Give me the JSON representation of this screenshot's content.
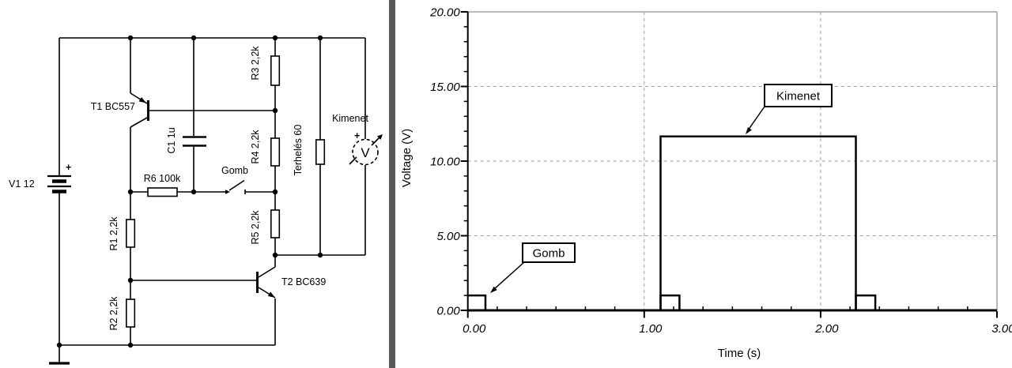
{
  "schematic": {
    "v1": {
      "label": "V1 12",
      "plus": "+"
    },
    "t1": {
      "label": "T1 BC557"
    },
    "t2": {
      "label": "T2 BC639"
    },
    "c1": {
      "label": "C1 1u"
    },
    "r1": {
      "label": "R1 2,2k"
    },
    "r2": {
      "label": "R2 2,2k"
    },
    "r3": {
      "label": "R3 2,2k"
    },
    "r4": {
      "label": "R4 2,2k"
    },
    "r5": {
      "label": "R5 2,2k"
    },
    "r6": {
      "label": "R6 100k"
    },
    "load": {
      "label": "Terhelés 60"
    },
    "switch": {
      "label": "Gomb"
    },
    "output_wire": {
      "label": "Kimenet"
    },
    "voltmeter": {
      "symbol": "V",
      "plus": "+"
    }
  },
  "chart": {
    "xlabel": "Time (s)",
    "ylabel": "Voltage (V)",
    "yticks": [
      "20.00",
      "15.00",
      "10.00",
      "5.00",
      "0.00"
    ],
    "xticks": [
      "0.00",
      "1.00",
      "2.00",
      "3.00"
    ],
    "annotations": [
      {
        "label": "Kimenet"
      },
      {
        "label": "Gomb"
      }
    ]
  },
  "chart_data": {
    "type": "line",
    "title": "",
    "xlabel": "Time (s)",
    "ylabel": "Voltage (V)",
    "xlim": [
      0,
      3
    ],
    "ylim": [
      0,
      20
    ],
    "x_major_ticks": [
      0,
      1,
      2,
      3
    ],
    "x_minor_step": 0.1666667,
    "y_major_ticks": [
      20,
      15,
      10,
      5,
      0
    ],
    "y_minor_step": 1,
    "grid": "dashed",
    "legend_position": "none",
    "series": [
      {
        "name": "Gomb",
        "points": [
          [
            0,
            1
          ],
          [
            0.1,
            1
          ],
          [
            0.1,
            0
          ],
          [
            1.093,
            0
          ],
          [
            1.093,
            1
          ],
          [
            1.2,
            1
          ],
          [
            1.2,
            0
          ],
          [
            2.2,
            0
          ],
          [
            2.2,
            1
          ],
          [
            2.31,
            1
          ],
          [
            2.31,
            0
          ],
          [
            3,
            0
          ]
        ]
      },
      {
        "name": "Kimenet",
        "points": [
          [
            0,
            0
          ],
          [
            1.093,
            0
          ],
          [
            1.093,
            11.65
          ],
          [
            2.2,
            11.65
          ],
          [
            2.2,
            0
          ],
          [
            3,
            0
          ]
        ]
      }
    ],
    "annotations": [
      {
        "label": "Kimenet",
        "target_xy": [
          1.57,
          11.65
        ]
      },
      {
        "label": "Gomb",
        "target_xy": [
          0.1,
          1
        ]
      }
    ]
  },
  "colors": {
    "trace": "#000000",
    "grid": "#9c9c9c",
    "border": "#a0a0a0",
    "divider": "#5a5a5a"
  }
}
